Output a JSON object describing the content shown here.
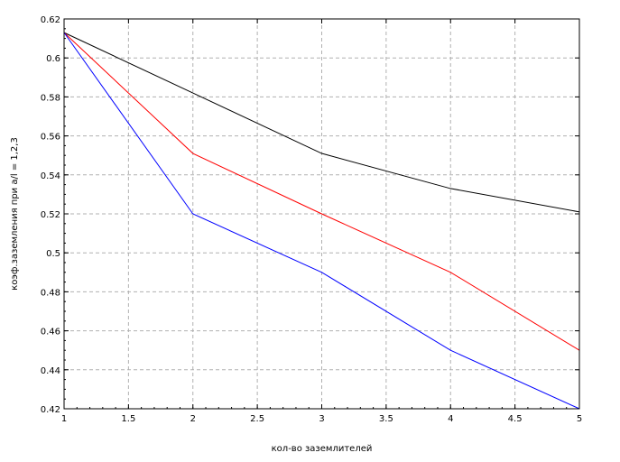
{
  "chart_data": {
    "type": "line",
    "title": "",
    "xlabel": "кол-во заземлителей",
    "ylabel": "коэф.заземления при а/l = 1,2,3",
    "xlim": [
      1,
      5
    ],
    "ylim": [
      0.42,
      0.62
    ],
    "x_ticks": [
      "1",
      "1.5",
      "2",
      "2.5",
      "3",
      "3.5",
      "4",
      "4.5",
      "5"
    ],
    "y_ticks": [
      "0.42",
      "0.44",
      "0.46",
      "0.48",
      "0.5",
      "0.52",
      "0.54",
      "0.56",
      "0.58",
      "0.6",
      "0.62"
    ],
    "grid": true,
    "legend": "none",
    "x": [
      1,
      2,
      3,
      4,
      5
    ],
    "series": [
      {
        "color": "#000000",
        "values": [
          0.613,
          0.582,
          0.551,
          0.533,
          0.521
        ]
      },
      {
        "color": "#ff0000",
        "values": [
          0.613,
          0.551,
          0.52,
          0.49,
          0.45
        ]
      },
      {
        "color": "#0000ff",
        "values": [
          0.613,
          0.52,
          0.49,
          0.45,
          0.42
        ]
      }
    ]
  }
}
